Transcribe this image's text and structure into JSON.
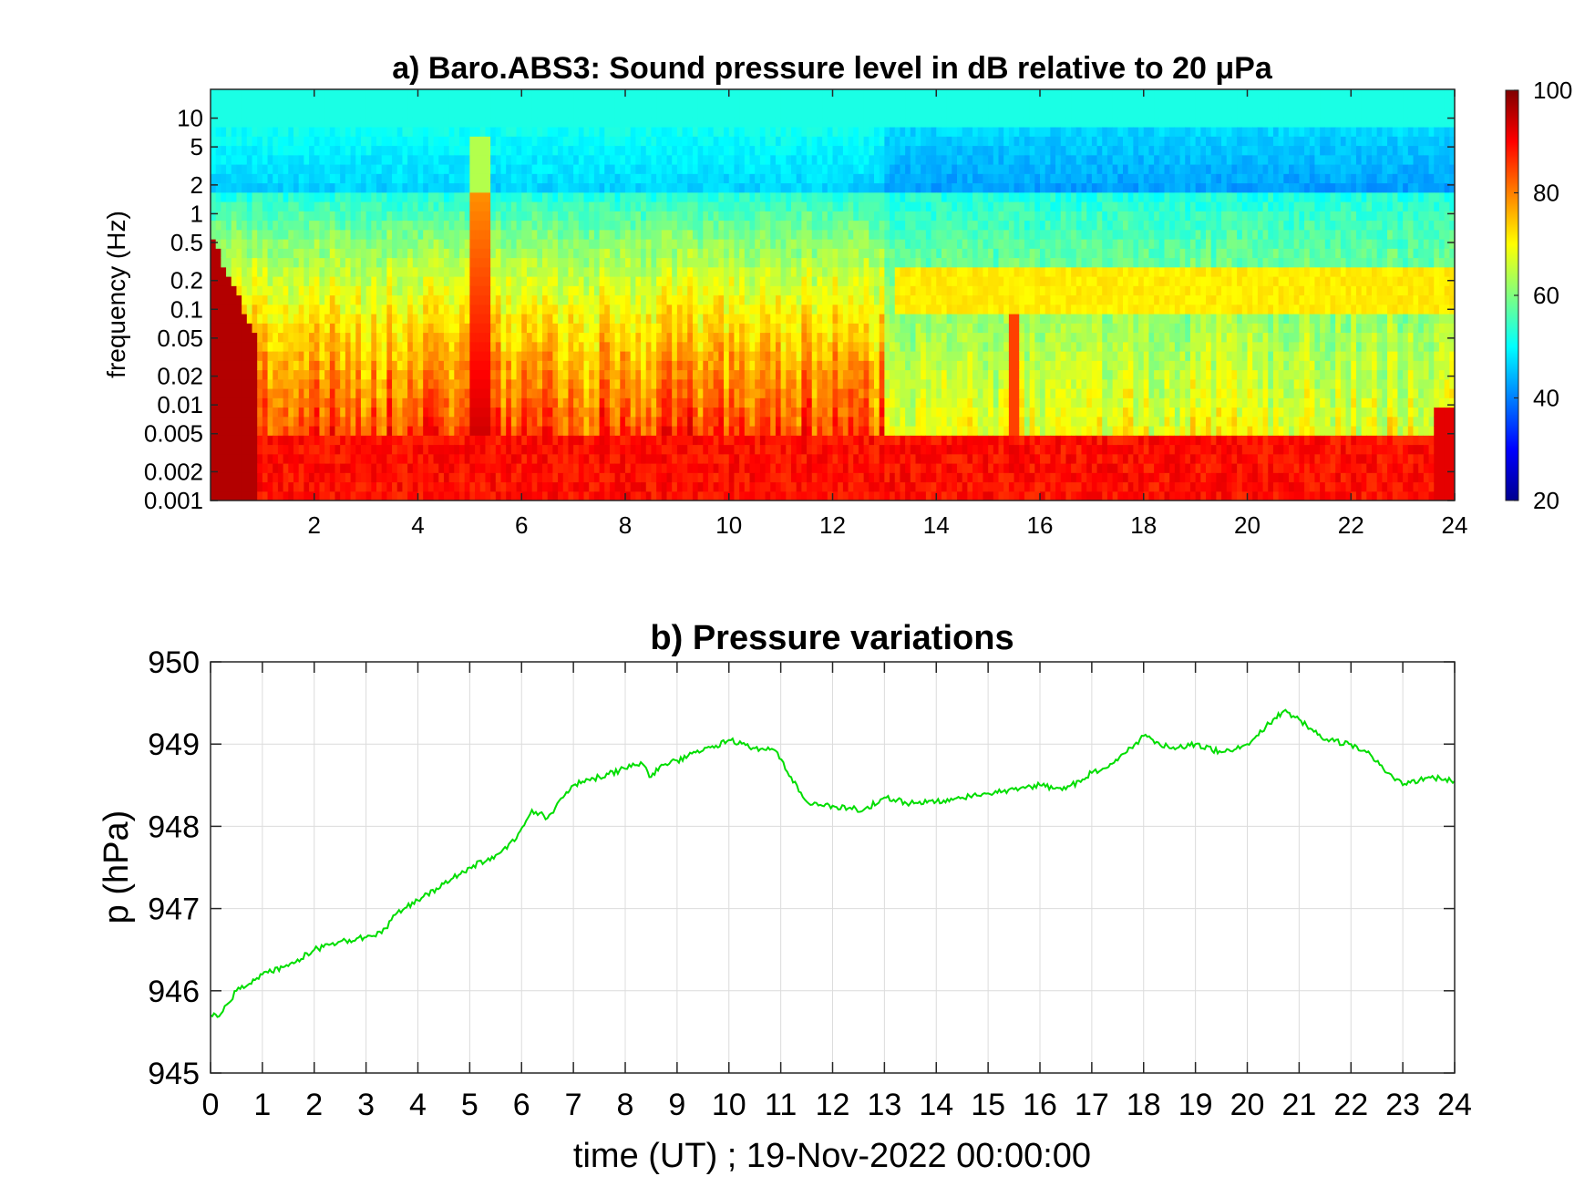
{
  "chart_data": [
    {
      "type": "heatmap",
      "title": "a) Baro.ABS3: Sound pressure level in dB relative to 20 μPa",
      "xlabel": "",
      "ylabel": "frequency (Hz)",
      "x_scale": "linear",
      "y_scale": "log",
      "xlim": [
        0,
        24
      ],
      "ylim": [
        0.001,
        20
      ],
      "x_ticks": [
        "2",
        "4",
        "6",
        "8",
        "10",
        "12",
        "14",
        "16",
        "18",
        "20",
        "22",
        "24"
      ],
      "y_ticks": [
        "0.001",
        "0.002",
        "0.005",
        "0.01",
        "0.02",
        "0.05",
        "0.1",
        "0.2",
        "0.5",
        "1",
        "2",
        "5",
        "10"
      ],
      "colorbar": {
        "colormap": "jet",
        "range": [
          20,
          100
        ],
        "ticks": [
          "20",
          "40",
          "60",
          "80",
          "100"
        ]
      },
      "grid": false,
      "features": [
        {
          "time": 5.2,
          "description": "broadband burst reaching about 5 Hz"
        },
        {
          "time": 15.5,
          "description": "burst reaching about 0.1 Hz"
        },
        {
          "time_range": [
            13,
            24
          ],
          "frequency": 0.15,
          "description": "persistent microbarom band near 0.2 Hz"
        }
      ]
    },
    {
      "type": "line",
      "title": "b) Pressure variations",
      "xlabel": "time (UT) ; 19-Nov-2022 00:00:00",
      "ylabel": "p (hPa)",
      "xlim": [
        0,
        24
      ],
      "ylim": [
        945,
        950
      ],
      "x_ticks": [
        "0",
        "1",
        "2",
        "3",
        "4",
        "5",
        "6",
        "7",
        "8",
        "9",
        "10",
        "11",
        "12",
        "13",
        "14",
        "15",
        "16",
        "17",
        "18",
        "19",
        "20",
        "21",
        "22",
        "23",
        "24"
      ],
      "y_ticks": [
        "945",
        "946",
        "947",
        "948",
        "949",
        "950"
      ],
      "grid": true,
      "series": [
        {
          "color": "#00dd00",
          "x": [
            0,
            0.2,
            0.5,
            1,
            1.5,
            2,
            2.5,
            3,
            3.3,
            3.6,
            4,
            4.5,
            5,
            5.5,
            5.9,
            6.2,
            6.5,
            6.8,
            7,
            7.5,
            8,
            8.3,
            8.5,
            8.7,
            9,
            9.5,
            10,
            10.5,
            10.9,
            11.2,
            11.5,
            11.8,
            12,
            12.3,
            12.6,
            13,
            13.5,
            14,
            14.5,
            15,
            15.5,
            16,
            16.5,
            17,
            17.5,
            18,
            18.5,
            19,
            19.5,
            20,
            20.5,
            20.7,
            21,
            21.5,
            22,
            22.3,
            22.7,
            23,
            23.5,
            24
          ],
          "y": [
            945.7,
            945.72,
            946.0,
            946.2,
            946.3,
            946.5,
            946.6,
            946.65,
            946.7,
            946.95,
            947.1,
            947.3,
            947.5,
            947.65,
            947.85,
            948.2,
            948.1,
            948.35,
            948.5,
            948.6,
            948.7,
            948.78,
            948.6,
            948.75,
            948.8,
            948.92,
            949.05,
            948.95,
            948.92,
            948.6,
            948.3,
            948.25,
            948.25,
            948.22,
            948.2,
            948.35,
            948.28,
            948.3,
            948.35,
            948.4,
            948.45,
            948.5,
            948.45,
            948.65,
            948.8,
            949.1,
            948.95,
            949.0,
            948.9,
            949.0,
            949.3,
            949.4,
            949.3,
            949.05,
            949.0,
            948.9,
            948.65,
            948.5,
            948.6,
            948.55
          ]
        }
      ]
    }
  ]
}
